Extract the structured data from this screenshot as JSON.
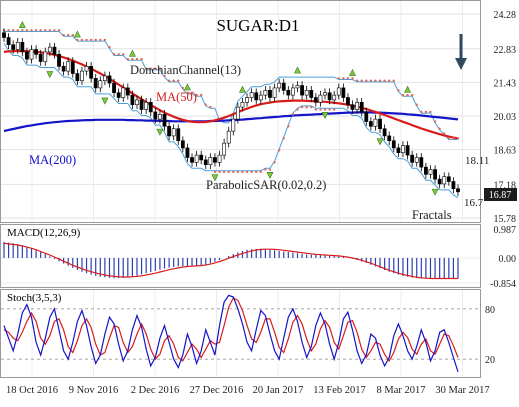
{
  "chart_data": {
    "type": "line",
    "title": "SUGAR:D1",
    "x_tick_labels": [
      "18 Oct 2016",
      "9 Nov 2016",
      "2 Dec 2016",
      "27 Dec 2016",
      "20 Jan 2017",
      "13 Feb 2017",
      "8 Mar 2017",
      "30 Mar 2017"
    ],
    "main_panel": {
      "y_tick_labels": [
        "24.28",
        "22.83",
        "21.43",
        "20.03",
        "18.63",
        "17.18",
        "15.78"
      ],
      "ylim": [
        15.78,
        24.28
      ],
      "last_price_label": "16.87",
      "indicator_labels": {
        "donchian": "DonchianChannel(13)",
        "ma50": "MA(50)",
        "ma200": "MA(200)",
        "parabolic_sar": "ParabolicSAR(0.02,0.2)",
        "fractals": "Fractals"
      },
      "right_value_labels": [
        "18.11",
        "16.7"
      ],
      "close": [
        23.3,
        23.0,
        22.8,
        23.1,
        22.7,
        22.4,
        22.8,
        22.6,
        22.3,
        22.7,
        22.9,
        22.6,
        22.1,
        21.9,
        22.3,
        21.8,
        21.5,
        21.9,
        22.1,
        21.6,
        21.2,
        21.5,
        21.7,
        21.4,
        21.0,
        20.8,
        21.2,
        20.9,
        20.5,
        20.7,
        20.3,
        20.6,
        20.2,
        19.9,
        20.1,
        19.6,
        19.2,
        19.5,
        19.0,
        18.7,
        18.3,
        18.1,
        18.4,
        18.2,
        18.0,
        18.3,
        18.1,
        18.4,
        18.9,
        19.4,
        19.9,
        20.4,
        20.6,
        20.8,
        21.0,
        20.7,
        20.9,
        21.1,
        20.8,
        21.2,
        21.4,
        21.1,
        20.9,
        21.2,
        21.3,
        20.9,
        21.1,
        20.8,
        20.6,
        20.9,
        21.0,
        20.7,
        20.9,
        21.2,
        20.8,
        20.5,
        20.3,
        20.6,
        20.2,
        19.8,
        19.6,
        19.9,
        19.5,
        19.2,
        19.0,
        18.7,
        18.5,
        18.8,
        18.4,
        18.1,
        18.3,
        17.9,
        17.6,
        17.8,
        17.4,
        17.2,
        17.5,
        17.3,
        17.0,
        16.87
      ],
      "ma50": [
        22.7,
        22.72,
        22.73,
        22.74,
        22.74,
        22.73,
        22.72,
        22.7,
        22.68,
        22.65,
        22.62,
        22.58,
        22.53,
        22.47,
        22.41,
        22.34,
        22.26,
        22.18,
        22.09,
        22.0,
        21.9,
        21.8,
        21.69,
        21.58,
        21.46,
        21.34,
        21.22,
        21.1,
        20.97,
        20.85,
        20.73,
        20.61,
        20.49,
        20.38,
        20.27,
        20.17,
        20.08,
        20.0,
        19.93,
        19.87,
        19.82,
        19.79,
        19.77,
        19.77,
        19.78,
        19.81,
        19.85,
        19.9,
        19.96,
        20.03,
        20.11,
        20.19,
        20.27,
        20.34,
        20.41,
        20.47,
        20.52,
        20.56,
        20.59,
        20.62,
        20.64,
        20.65,
        20.66,
        20.67,
        20.67,
        20.67,
        20.66,
        20.65,
        20.64,
        20.63,
        20.62,
        20.6,
        20.58,
        20.56,
        20.53,
        20.5,
        20.46,
        20.42,
        20.37,
        20.32,
        20.26,
        20.2,
        20.14,
        20.07,
        20.0,
        19.93,
        19.86,
        19.79,
        19.72,
        19.65,
        19.58,
        19.51,
        19.45,
        19.39,
        19.33,
        19.27,
        19.22,
        19.17,
        19.13,
        19.1
      ],
      "ma200": [
        19.4,
        19.45,
        19.49,
        19.53,
        19.57,
        19.61,
        19.64,
        19.67,
        19.7,
        19.73,
        19.75,
        19.77,
        19.79,
        19.81,
        19.82,
        19.83,
        19.84,
        19.85,
        19.86,
        19.86,
        19.87,
        19.87,
        19.87,
        19.87,
        19.87,
        19.87,
        19.87,
        19.86,
        19.86,
        19.85,
        19.85,
        19.84,
        19.84,
        19.83,
        19.83,
        19.82,
        19.82,
        19.81,
        19.81,
        19.81,
        19.81,
        19.81,
        19.81,
        19.81,
        19.81,
        19.82,
        19.82,
        19.83,
        19.84,
        19.85,
        19.86,
        19.87,
        19.88,
        19.9,
        19.91,
        19.93,
        19.94,
        19.96,
        19.97,
        19.99,
        20.0,
        20.02,
        20.03,
        20.05,
        20.06,
        20.07,
        20.08,
        20.09,
        20.1,
        20.11,
        20.12,
        20.13,
        20.14,
        20.15,
        20.16,
        20.17,
        20.17,
        20.18,
        20.18,
        20.18,
        20.18,
        20.17,
        20.17,
        20.16,
        20.15,
        20.14,
        20.13,
        20.12,
        20.1,
        20.09,
        20.07,
        20.05,
        20.03,
        20.01,
        19.99,
        19.97,
        19.95,
        19.93,
        19.91,
        19.89
      ]
    },
    "macd_panel": {
      "label": "MACD(12,26,9)",
      "y_tick_labels": [
        "0.987",
        "0.00",
        "-0.854"
      ],
      "ylim": [
        -0.854,
        0.987
      ],
      "histogram": [
        0.55,
        0.52,
        0.5,
        0.47,
        0.43,
        0.38,
        0.33,
        0.27,
        0.2,
        0.13,
        0.05,
        -0.03,
        -0.11,
        -0.19,
        -0.27,
        -0.34,
        -0.41,
        -0.47,
        -0.52,
        -0.57,
        -0.61,
        -0.64,
        -0.66,
        -0.68,
        -0.69,
        -0.69,
        -0.68,
        -0.66,
        -0.63,
        -0.6,
        -0.56,
        -0.52,
        -0.48,
        -0.44,
        -0.4,
        -0.36,
        -0.33,
        -0.31,
        -0.29,
        -0.28,
        -0.28,
        -0.28,
        -0.27,
        -0.25,
        -0.22,
        -0.18,
        -0.13,
        -0.07,
        0.0,
        0.07,
        0.13,
        0.19,
        0.24,
        0.28,
        0.3,
        0.31,
        0.31,
        0.3,
        0.28,
        0.26,
        0.24,
        0.22,
        0.2,
        0.18,
        0.16,
        0.14,
        0.12,
        0.11,
        0.1,
        0.09,
        0.08,
        0.07,
        0.06,
        0.05,
        0.03,
        0.0,
        -0.03,
        -0.07,
        -0.12,
        -0.17,
        -0.23,
        -0.29,
        -0.35,
        -0.41,
        -0.47,
        -0.52,
        -0.57,
        -0.61,
        -0.64,
        -0.67,
        -0.69,
        -0.7,
        -0.7,
        -0.7,
        -0.7,
        -0.69,
        -0.69,
        -0.7,
        -0.7,
        -0.7
      ],
      "signal": [
        0.5,
        0.48,
        0.46,
        0.44,
        0.41,
        0.37,
        0.33,
        0.28,
        0.22,
        0.16,
        0.1,
        0.03,
        -0.04,
        -0.11,
        -0.18,
        -0.25,
        -0.31,
        -0.37,
        -0.42,
        -0.47,
        -0.51,
        -0.55,
        -0.58,
        -0.61,
        -0.63,
        -0.64,
        -0.65,
        -0.65,
        -0.64,
        -0.63,
        -0.61,
        -0.58,
        -0.55,
        -0.52,
        -0.48,
        -0.44,
        -0.4,
        -0.37,
        -0.34,
        -0.31,
        -0.29,
        -0.28,
        -0.27,
        -0.26,
        -0.24,
        -0.21,
        -0.17,
        -0.12,
        -0.07,
        -0.01,
        0.05,
        0.1,
        0.15,
        0.2,
        0.24,
        0.27,
        0.29,
        0.3,
        0.3,
        0.29,
        0.28,
        0.26,
        0.24,
        0.22,
        0.2,
        0.18,
        0.16,
        0.14,
        0.12,
        0.11,
        0.1,
        0.09,
        0.08,
        0.07,
        0.05,
        0.03,
        0.0,
        -0.04,
        -0.08,
        -0.13,
        -0.18,
        -0.24,
        -0.3,
        -0.36,
        -0.42,
        -0.47,
        -0.52,
        -0.56,
        -0.6,
        -0.63,
        -0.66,
        -0.68,
        -0.69,
        -0.7,
        -0.7,
        -0.7,
        -0.7,
        -0.7,
        -0.7,
        -0.7
      ]
    },
    "stoch_panel": {
      "label": "Stoch(3,5,3)",
      "y_tick_labels": [
        "80",
        "20"
      ],
      "ylim": [
        0,
        100
      ],
      "k": [
        60,
        45,
        30,
        50,
        75,
        85,
        70,
        40,
        25,
        45,
        70,
        80,
        55,
        30,
        20,
        40,
        65,
        78,
        60,
        35,
        15,
        25,
        50,
        70,
        62,
        38,
        18,
        30,
        55,
        72,
        58,
        32,
        12,
        22,
        45,
        60,
        40,
        20,
        10,
        25,
        50,
        35,
        15,
        30,
        55,
        40,
        25,
        60,
        88,
        96,
        94,
        80,
        62,
        40,
        30,
        55,
        78,
        72,
        50,
        30,
        20,
        45,
        70,
        80,
        65,
        40,
        22,
        35,
        60,
        75,
        62,
        38,
        20,
        40,
        68,
        76,
        55,
        30,
        15,
        25,
        50,
        45,
        25,
        12,
        22,
        48,
        62,
        48,
        30,
        20,
        35,
        55,
        40,
        18,
        30,
        52,
        55,
        40,
        22,
        5
      ],
      "d": [
        55,
        52,
        45,
        42,
        52,
        65,
        75,
        65,
        45,
        38,
        48,
        65,
        68,
        55,
        35,
        28,
        42,
        60,
        68,
        58,
        38,
        25,
        28,
        45,
        60,
        58,
        40,
        28,
        35,
        50,
        62,
        50,
        32,
        20,
        26,
        42,
        48,
        38,
        22,
        18,
        28,
        38,
        32,
        22,
        32,
        42,
        38,
        40,
        60,
        82,
        93,
        90,
        78,
        60,
        44,
        40,
        52,
        68,
        68,
        52,
        34,
        28,
        44,
        64,
        72,
        62,
        44,
        30,
        38,
        56,
        66,
        58,
        40,
        32,
        48,
        64,
        66,
        52,
        32,
        22,
        30,
        40,
        38,
        26,
        18,
        28,
        44,
        52,
        46,
        32,
        26,
        38,
        44,
        30,
        26,
        38,
        50,
        48,
        36,
        22
      ]
    }
  }
}
